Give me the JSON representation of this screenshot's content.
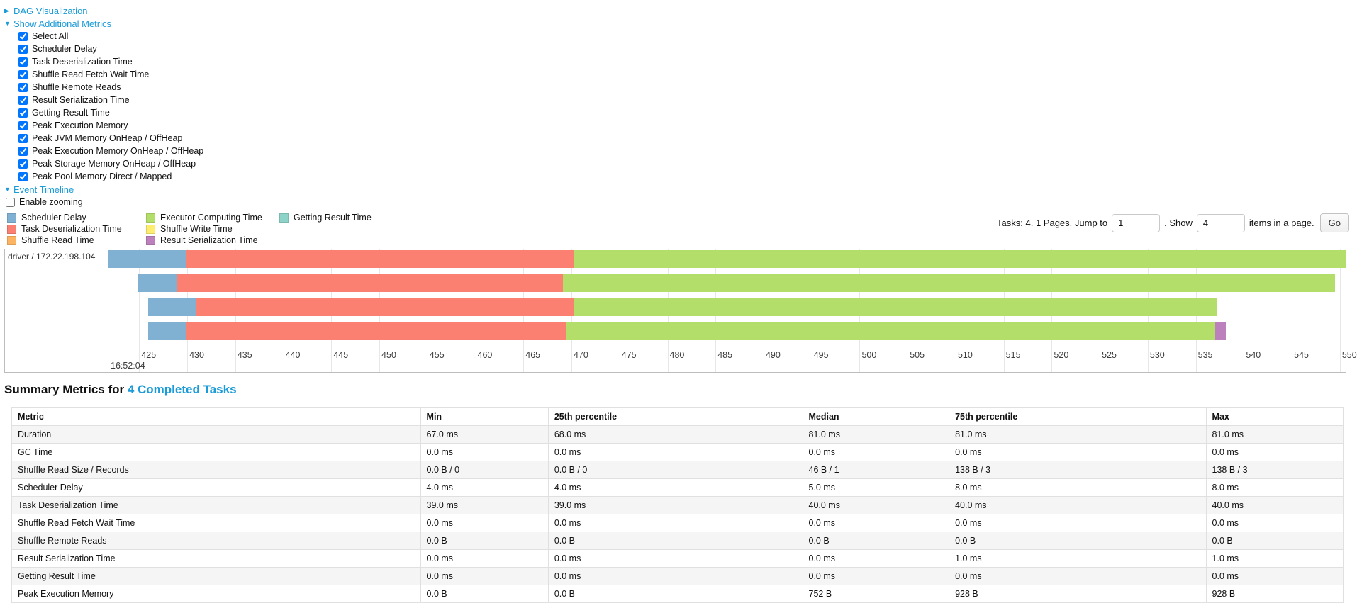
{
  "colors": {
    "link": "#1b9bd7",
    "scheduler_delay": "#80B1D3",
    "task_deserialization": "#FB8072",
    "shuffle_read": "#FDB462",
    "executor_computing": "#B3DE69",
    "shuffle_write": "#FFED6F",
    "result_serialization": "#BC80BD",
    "getting_result": "#8DD3C7"
  },
  "controls": {
    "dag": {
      "label": "DAG Visualization",
      "expanded": false
    },
    "metrics_toggle": {
      "label": "Show Additional Metrics",
      "expanded": true
    },
    "checkboxes": [
      {
        "label": "Select All",
        "checked": true
      },
      {
        "label": "Scheduler Delay",
        "checked": true
      },
      {
        "label": "Task Deserialization Time",
        "checked": true
      },
      {
        "label": "Shuffle Read Fetch Wait Time",
        "checked": true
      },
      {
        "label": "Shuffle Remote Reads",
        "checked": true
      },
      {
        "label": "Result Serialization Time",
        "checked": true
      },
      {
        "label": "Getting Result Time",
        "checked": true
      },
      {
        "label": "Peak Execution Memory",
        "checked": true
      },
      {
        "label": "Peak JVM Memory OnHeap / OffHeap",
        "checked": true
      },
      {
        "label": "Peak Execution Memory OnHeap / OffHeap",
        "checked": true
      },
      {
        "label": "Peak Storage Memory OnHeap / OffHeap",
        "checked": true
      },
      {
        "label": "Peak Pool Memory Direct / Mapped",
        "checked": true
      }
    ],
    "event_timeline": {
      "label": "Event Timeline",
      "expanded": true
    },
    "enable_zooming": {
      "label": "Enable zooming",
      "checked": false
    }
  },
  "pagination": {
    "tasks_text": "Tasks: 4. 1 Pages. Jump to",
    "jump_value": "1",
    "show_text": ". Show",
    "show_value": "4",
    "items_text": "items in a page.",
    "go_label": "Go"
  },
  "chart_data": {
    "type": "timeline",
    "group_label": "driver / 172.22.198.104",
    "axis": {
      "start": 421.8,
      "end": 550.6,
      "first_tick": 425,
      "last_tick": 550,
      "tick_interval": 5,
      "major_label": "16:52:04",
      "units": "milliseconds within second 16:52:04"
    },
    "legend": [
      {
        "key": "scheduler_delay",
        "label": "Scheduler Delay"
      },
      {
        "key": "task_deserialization",
        "label": "Task Deserialization Time"
      },
      {
        "key": "shuffle_read",
        "label": "Shuffle Read Time"
      },
      {
        "key": "executor_computing",
        "label": "Executor Computing Time"
      },
      {
        "key": "shuffle_write",
        "label": "Shuffle Write Time"
      },
      {
        "key": "result_serialization",
        "label": "Result Serialization Time"
      },
      {
        "key": "getting_result",
        "label": "Getting Result Time"
      }
    ],
    "legend_columns": [
      3,
      3,
      1
    ],
    "tasks": [
      {
        "segments": [
          {
            "key": "scheduler_delay",
            "start": 421.8,
            "end": 429.9
          },
          {
            "key": "task_deserialization",
            "start": 429.9,
            "end": 470.2
          },
          {
            "key": "executor_computing",
            "start": 470.2,
            "end": 550.6
          }
        ]
      },
      {
        "segments": [
          {
            "key": "scheduler_delay",
            "start": 424.9,
            "end": 428.9
          },
          {
            "key": "task_deserialization",
            "start": 428.9,
            "end": 469.1
          },
          {
            "key": "executor_computing",
            "start": 469.1,
            "end": 549.5
          }
        ]
      },
      {
        "segments": [
          {
            "key": "scheduler_delay",
            "start": 425.9,
            "end": 430.9
          },
          {
            "key": "task_deserialization",
            "start": 430.9,
            "end": 470.2
          },
          {
            "key": "executor_computing",
            "start": 470.2,
            "end": 537.2
          }
        ]
      },
      {
        "segments": [
          {
            "key": "scheduler_delay",
            "start": 425.9,
            "end": 429.9
          },
          {
            "key": "task_deserialization",
            "start": 429.9,
            "end": 469.4
          },
          {
            "key": "executor_computing",
            "start": 469.4,
            "end": 537.0
          },
          {
            "key": "result_serialization",
            "start": 537.0,
            "end": 538.1
          }
        ]
      }
    ]
  },
  "summary": {
    "title_prefix": "Summary Metrics for ",
    "title_link": "4 Completed Tasks"
  },
  "metrics_table": {
    "headers": [
      "Metric",
      "Min",
      "25th percentile",
      "Median",
      "75th percentile",
      "Max"
    ],
    "col_widths_pct": [
      30.7,
      9.6,
      19.1,
      11.0,
      19.3,
      10.3
    ],
    "rows": [
      [
        "Duration",
        "67.0 ms",
        "68.0 ms",
        "81.0 ms",
        "81.0 ms",
        "81.0 ms"
      ],
      [
        "GC Time",
        "0.0 ms",
        "0.0 ms",
        "0.0 ms",
        "0.0 ms",
        "0.0 ms"
      ],
      [
        "Shuffle Read Size / Records",
        "0.0 B / 0",
        "0.0 B / 0",
        "46 B / 1",
        "138 B / 3",
        "138 B / 3"
      ],
      [
        "Scheduler Delay",
        "4.0 ms",
        "4.0 ms",
        "5.0 ms",
        "8.0 ms",
        "8.0 ms"
      ],
      [
        "Task Deserialization Time",
        "39.0 ms",
        "39.0 ms",
        "40.0 ms",
        "40.0 ms",
        "40.0 ms"
      ],
      [
        "Shuffle Read Fetch Wait Time",
        "0.0 ms",
        "0.0 ms",
        "0.0 ms",
        "0.0 ms",
        "0.0 ms"
      ],
      [
        "Shuffle Remote Reads",
        "0.0 B",
        "0.0 B",
        "0.0 B",
        "0.0 B",
        "0.0 B"
      ],
      [
        "Result Serialization Time",
        "0.0 ms",
        "0.0 ms",
        "0.0 ms",
        "1.0 ms",
        "1.0 ms"
      ],
      [
        "Getting Result Time",
        "0.0 ms",
        "0.0 ms",
        "0.0 ms",
        "0.0 ms",
        "0.0 ms"
      ],
      [
        "Peak Execution Memory",
        "0.0 B",
        "0.0 B",
        "752 B",
        "928 B",
        "928 B"
      ]
    ]
  }
}
